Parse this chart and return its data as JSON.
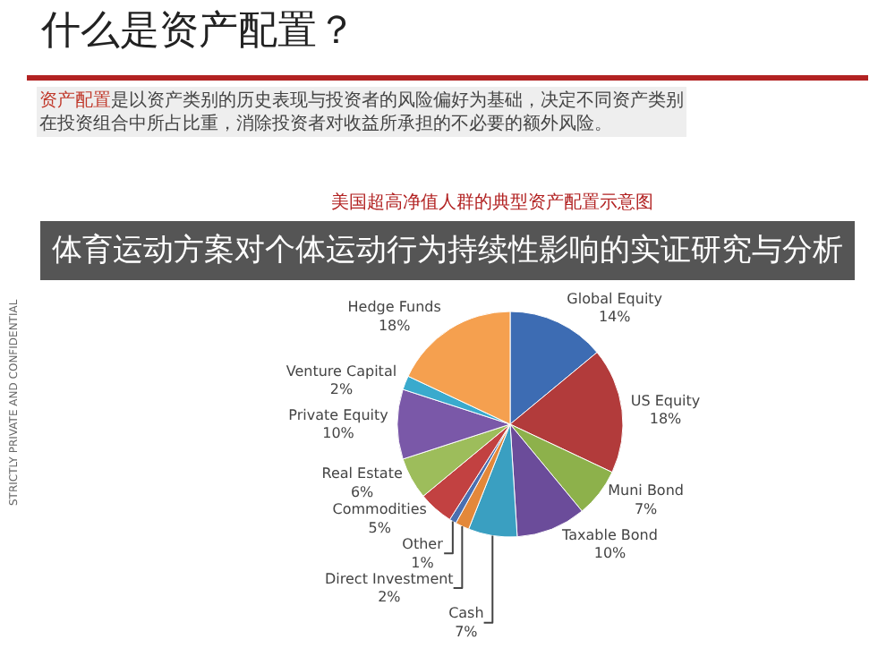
{
  "chart_data": {
    "type": "pie",
    "title": "什么是资产配置？",
    "subtitle": "资产配置是以资产类别的历史表现与投资者的风险偏好为基础，决定不同资产类别在投资组合中所占比重，消除投资者对收益所承担的不必要的额外风险。",
    "annotations": [
      "美国超高净值人群的典型资产配置示意图",
      "体育运动方案对个体运动行为持续性影响的实证研究与分析",
      "STRICTLY PRIVATE AND CONFIDENTIAL"
    ],
    "categories": [
      "Global Equity",
      "US Equity",
      "Muni Bond",
      "Taxable Bond",
      "Cash",
      "Direct Investment",
      "Other",
      "Commodities",
      "Real Estate",
      "Private Equity",
      "Venture Capital",
      "Hedge Funds"
    ],
    "values": [
      14,
      18,
      7,
      10,
      7,
      2,
      1,
      5,
      6,
      10,
      2,
      18
    ],
    "value_labels": [
      "14%",
      "18%",
      "7%",
      "10%",
      "7%",
      "2%",
      "1%",
      "5%",
      "6%",
      "10%",
      "2%",
      "18%"
    ],
    "colors": [
      "#3d6cb3",
      "#b23b3b",
      "#8db14b",
      "#6b4c9a",
      "#3a9fc1",
      "#e3883a",
      "#4a6fb0",
      "#c24141",
      "#9dbd5b",
      "#7a58a8",
      "#3aaacd",
      "#f5a04f"
    ],
    "legend": false
  }
}
